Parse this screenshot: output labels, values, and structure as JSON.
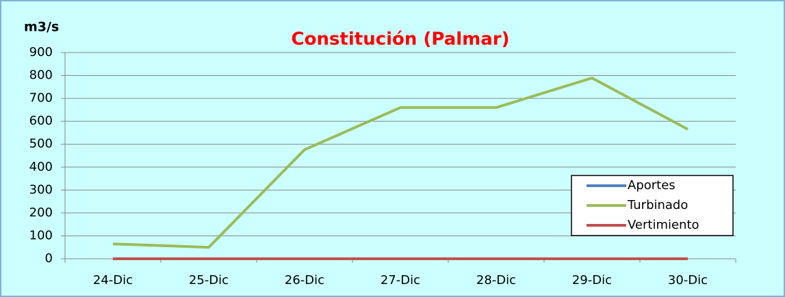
{
  "chart_data": {
    "type": "line",
    "title": "Constitución (Palmar)",
    "y_label": "m3/s",
    "categories": [
      "24-Dic",
      "25-Dic",
      "26-Dic",
      "27-Dic",
      "28-Dic",
      "29-Dic",
      "30-Dic"
    ],
    "series": [
      {
        "name": "Aportes",
        "color": "#4f81bd",
        "values": [
          0,
          0,
          0,
          0,
          0,
          0,
          0
        ]
      },
      {
        "name": "Turbinado",
        "color": "#9bbb59",
        "values": [
          65,
          50,
          476,
          660,
          660,
          789,
          565
        ]
      },
      {
        "name": "Vertimiento",
        "color": "#c0504d",
        "values": [
          0,
          0,
          0,
          0,
          0,
          0,
          0
        ]
      }
    ],
    "ylim": [
      0,
      900
    ],
    "yticks": [
      0,
      100,
      200,
      300,
      400,
      500,
      600,
      700,
      800,
      900
    ],
    "grid": true,
    "legend": "lower right"
  }
}
